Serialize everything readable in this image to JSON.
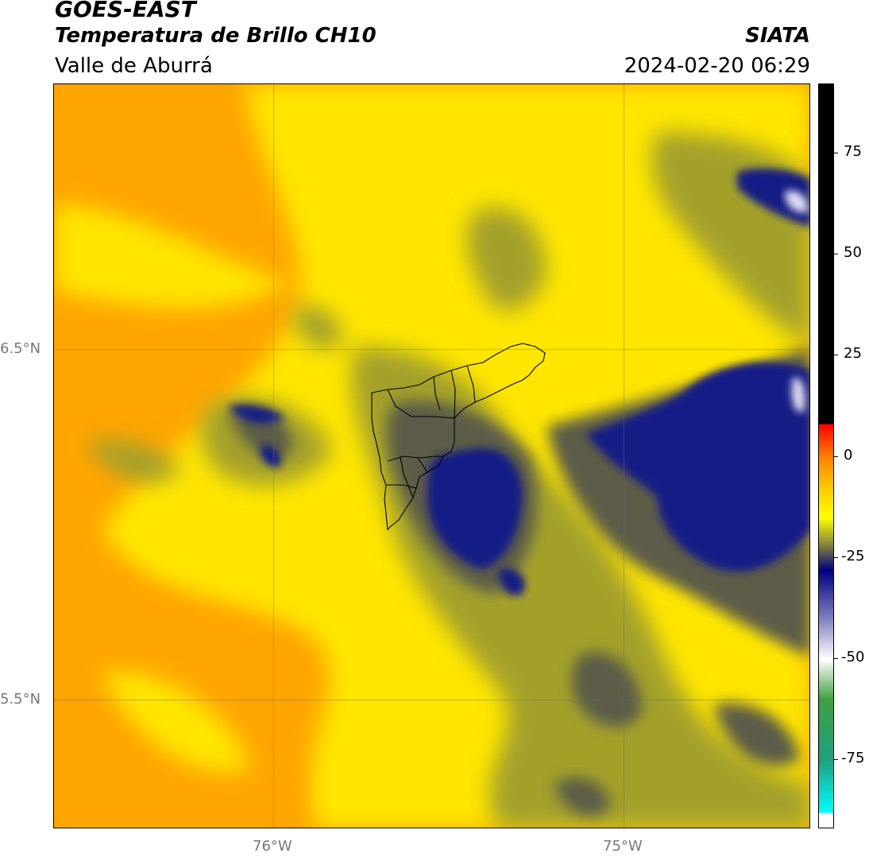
{
  "header": {
    "satellite": "GOES-EAST",
    "product": "Temperatura de Brillo CH10",
    "region": "Valle de Aburrá",
    "agency": "SIATA",
    "datetime": "2024-02-20 06:29"
  },
  "map": {
    "lat_labels": [
      "6.5°N",
      "5.5°N"
    ],
    "lon_labels": [
      "76°W",
      "75°W"
    ],
    "colors": {
      "orange": "#ffa000",
      "yellow": "#ffee00",
      "olive": "#9a9a2a",
      "gray": "#5a5a48",
      "navy": "#1a1a80",
      "white": "#e8e8f8"
    }
  },
  "colorbar": {
    "ticks": [
      "75",
      "50",
      "25",
      "0",
      "-25",
      "-50",
      "-75"
    ],
    "range": [
      -92,
      92
    ],
    "stops": [
      {
        "value": 92,
        "color": "#000000"
      },
      {
        "value": 8,
        "color": "#000000"
      },
      {
        "value": 8,
        "color": "#ff0000"
      },
      {
        "value": 0,
        "color": "#ff8000"
      },
      {
        "value": -8,
        "color": "#ffcc00"
      },
      {
        "value": -15,
        "color": "#ffff00"
      },
      {
        "value": -22,
        "color": "#808040"
      },
      {
        "value": -28,
        "color": "#000080"
      },
      {
        "value": -40,
        "color": "#8080c0"
      },
      {
        "value": -50,
        "color": "#ffffff"
      },
      {
        "value": -60,
        "color": "#40a040"
      },
      {
        "value": -75,
        "color": "#20a080"
      },
      {
        "value": -88,
        "color": "#00ffff"
      },
      {
        "value": -88,
        "color": "#ffffff"
      },
      {
        "value": -92,
        "color": "#ffffff"
      }
    ]
  }
}
